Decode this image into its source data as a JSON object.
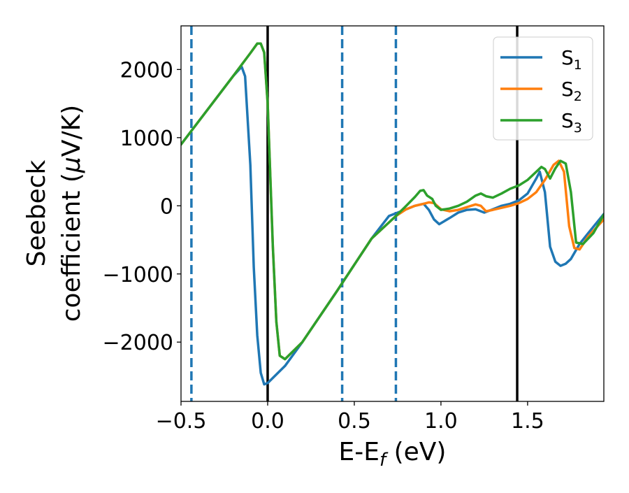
{
  "chart_data": {
    "type": "line",
    "xlabel": "E-E",
    "xlabel_sub": "f",
    "xlabel_unit": " (eV)",
    "ylabel_line1": "Seebeck",
    "ylabel_line2_prefix": "coefficient  (",
    "ylabel_mu": "μ",
    "ylabel_line2_suffix": "V/K)",
    "xlim": [
      -0.5,
      1.94
    ],
    "ylim": [
      -2870,
      2640
    ],
    "xticks": [
      -0.5,
      0.0,
      0.5,
      1.0,
      1.5
    ],
    "xtick_labels": [
      "−0.5",
      "0.0",
      "0.5",
      "1.0",
      "1.5"
    ],
    "yticks": [
      -2000,
      -1000,
      0,
      1000,
      2000
    ],
    "ytick_labels": [
      "−2000",
      "−1000",
      "0",
      "1000",
      "2000"
    ],
    "legend_position": "top-right",
    "vlines": [
      {
        "x": -0.44,
        "style": "dashed",
        "color": "#1f77b4"
      },
      {
        "x": 0.0,
        "style": "solid",
        "color": "#000000"
      },
      {
        "x": 0.43,
        "style": "dashed",
        "color": "#1f77b4"
      },
      {
        "x": 0.74,
        "style": "dashed",
        "color": "#1f77b4"
      },
      {
        "x": 1.44,
        "style": "solid",
        "color": "#000000"
      }
    ],
    "series": [
      {
        "name": "S",
        "sub": "1",
        "color": "#1f77b4",
        "x": [
          -0.5,
          -0.2,
          -0.15,
          -0.13,
          -0.1,
          -0.08,
          -0.06,
          -0.04,
          -0.02,
          0.0,
          0.1,
          0.2,
          0.4,
          0.6,
          0.7,
          0.8,
          0.85,
          0.9,
          0.93,
          0.96,
          0.99,
          1.05,
          1.1,
          1.15,
          1.2,
          1.25,
          1.3,
          1.35,
          1.4,
          1.45,
          1.5,
          1.55,
          1.57,
          1.6,
          1.63,
          1.66,
          1.69,
          1.72,
          1.75,
          1.8,
          1.85,
          1.94
        ],
        "y": [
          900,
          1900,
          2040,
          1900,
          600,
          -900,
          -1900,
          -2450,
          -2620,
          -2600,
          -2350,
          -2000,
          -1250,
          -480,
          -150,
          -50,
          0,
          30,
          -60,
          -200,
          -270,
          -180,
          -100,
          -60,
          -50,
          -100,
          -50,
          0,
          30,
          80,
          180,
          400,
          500,
          200,
          -600,
          -820,
          -880,
          -850,
          -780,
          -560,
          -400,
          -120
        ]
      },
      {
        "name": "S",
        "sub": "2",
        "color": "#ff7f0e",
        "x": [
          -0.5,
          -0.2,
          -0.1,
          -0.06,
          -0.04,
          -0.02,
          0.0,
          0.03,
          0.05,
          0.07,
          0.1,
          0.2,
          0.4,
          0.6,
          0.74,
          0.8,
          0.85,
          0.9,
          0.93,
          0.96,
          1.0,
          1.05,
          1.1,
          1.15,
          1.2,
          1.23,
          1.26,
          1.3,
          1.35,
          1.4,
          1.45,
          1.5,
          1.55,
          1.6,
          1.65,
          1.68,
          1.71,
          1.74,
          1.77,
          1.8,
          1.85,
          1.94
        ],
        "y": [
          900,
          1900,
          2240,
          2380,
          2380,
          2250,
          1500,
          -600,
          -1700,
          -2200,
          -2250,
          -2000,
          -1250,
          -480,
          -150,
          -50,
          0,
          30,
          50,
          40,
          -50,
          -80,
          -60,
          -20,
          20,
          0,
          -80,
          -60,
          -30,
          0,
          40,
          100,
          200,
          380,
          600,
          660,
          500,
          -300,
          -620,
          -640,
          -450,
          -200
        ]
      },
      {
        "name": "S",
        "sub": "3",
        "color": "#2ca02c",
        "x": [
          -0.5,
          -0.2,
          -0.1,
          -0.06,
          -0.04,
          -0.02,
          0.0,
          0.03,
          0.05,
          0.07,
          0.1,
          0.2,
          0.4,
          0.6,
          0.74,
          0.8,
          0.85,
          0.88,
          0.9,
          0.92,
          0.95,
          0.97,
          1.0,
          1.05,
          1.1,
          1.15,
          1.2,
          1.23,
          1.26,
          1.3,
          1.35,
          1.4,
          1.45,
          1.5,
          1.55,
          1.58,
          1.6,
          1.63,
          1.66,
          1.69,
          1.72,
          1.75,
          1.78,
          1.82,
          1.88,
          1.94
        ],
        "y": [
          900,
          1900,
          2240,
          2380,
          2380,
          2250,
          1500,
          -600,
          -1700,
          -2200,
          -2250,
          -2000,
          -1250,
          -480,
          -150,
          0,
          130,
          220,
          230,
          150,
          100,
          0,
          -60,
          -40,
          0,
          60,
          150,
          180,
          140,
          120,
          180,
          250,
          300,
          380,
          500,
          570,
          540,
          400,
          550,
          660,
          620,
          200,
          -540,
          -560,
          -400,
          -130
        ]
      }
    ]
  }
}
